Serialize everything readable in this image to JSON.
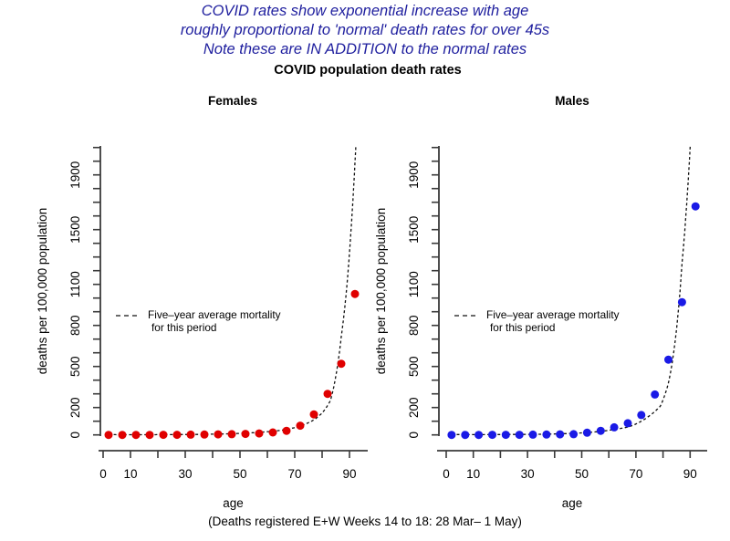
{
  "header": {
    "lines": [
      "COVID rates show exponential increase with age",
      "roughly proportional to 'normal' death rates for over 45s",
      "Note these are IN ADDITION to the normal rates"
    ],
    "color": "#1e1e9e"
  },
  "main_title": "COVID population death rates",
  "caption": "(Deaths registered E+W Weeks 14 to 18: 28 Mar– 1 May)",
  "chart_data": [
    {
      "type": "scatter",
      "title": "Females",
      "xlabel": "age",
      "ylabel": "deaths per 100,000 population",
      "point_color": "#e00000",
      "xlim": [
        0,
        95
      ],
      "ylim": [
        0,
        2100
      ],
      "x_ticks_every": 10,
      "x_labeled_ticks": [
        0,
        10,
        30,
        50,
        70,
        90
      ],
      "y_ticks_every": 100,
      "y_labeled_ticks": [
        0,
        200,
        500,
        800,
        1100,
        1500,
        1900
      ],
      "age_band_midpoints": [
        2,
        7,
        12,
        17,
        22,
        27,
        32,
        37,
        42,
        47,
        52,
        57,
        62,
        67,
        72,
        77,
        82,
        87,
        92
      ],
      "covid_death_rate_per_100k": [
        0,
        0,
        0,
        0,
        1,
        1,
        2,
        3,
        4,
        5,
        7,
        11,
        18,
        30,
        67,
        150,
        300,
        520,
        1030
      ],
      "baseline_five_year_avg": [
        [
          2,
          2
        ],
        [
          12,
          1
        ],
        [
          22,
          2
        ],
        [
          32,
          3
        ],
        [
          42,
          6
        ],
        [
          47,
          9
        ],
        [
          52,
          13
        ],
        [
          57,
          19
        ],
        [
          62,
          27
        ],
        [
          67,
          40
        ],
        [
          72,
          65
        ],
        [
          77,
          110
        ],
        [
          80,
          160
        ],
        [
          83,
          250
        ],
        [
          85,
          430
        ],
        [
          87,
          720
        ],
        [
          89,
          1080
        ],
        [
          90.5,
          1480
        ],
        [
          92,
          1990
        ],
        [
          93,
          2400
        ]
      ],
      "legend": {
        "line1": "Five–year average mortality",
        "line2": "for this period"
      }
    },
    {
      "type": "scatter",
      "title": "Males",
      "xlabel": "age",
      "ylabel": "deaths per 100,000 population",
      "point_color": "#1a1ae6",
      "xlim": [
        0,
        95
      ],
      "ylim": [
        0,
        2100
      ],
      "x_ticks_every": 10,
      "x_labeled_ticks": [
        0,
        10,
        30,
        50,
        70,
        90
      ],
      "y_ticks_every": 100,
      "y_labeled_ticks": [
        0,
        200,
        500,
        800,
        1100,
        1500,
        1900
      ],
      "age_band_midpoints": [
        2,
        7,
        12,
        17,
        22,
        27,
        32,
        37,
        42,
        47,
        52,
        57,
        62,
        67,
        72,
        77,
        82,
        87,
        92
      ],
      "covid_death_rate_per_100k": [
        0,
        0,
        0,
        1,
        1,
        1,
        2,
        3,
        4,
        5,
        16,
        30,
        55,
        85,
        145,
        295,
        550,
        970,
        1670
      ],
      "baseline_five_year_avg": [
        [
          2,
          3
        ],
        [
          12,
          1.5
        ],
        [
          22,
          3
        ],
        [
          32,
          4
        ],
        [
          42,
          8
        ],
        [
          47,
          12
        ],
        [
          52,
          17
        ],
        [
          57,
          26
        ],
        [
          62,
          40
        ],
        [
          67,
          57
        ],
        [
          72,
          100
        ],
        [
          75,
          140
        ],
        [
          79,
          210
        ],
        [
          82,
          380
        ],
        [
          84.5,
          690
        ],
        [
          87,
          1250
        ],
        [
          88.5,
          1620
        ],
        [
          90,
          2100
        ],
        [
          91,
          2700
        ]
      ],
      "legend": {
        "line1": "Five–year average mortality",
        "line2": "for this period"
      }
    }
  ]
}
